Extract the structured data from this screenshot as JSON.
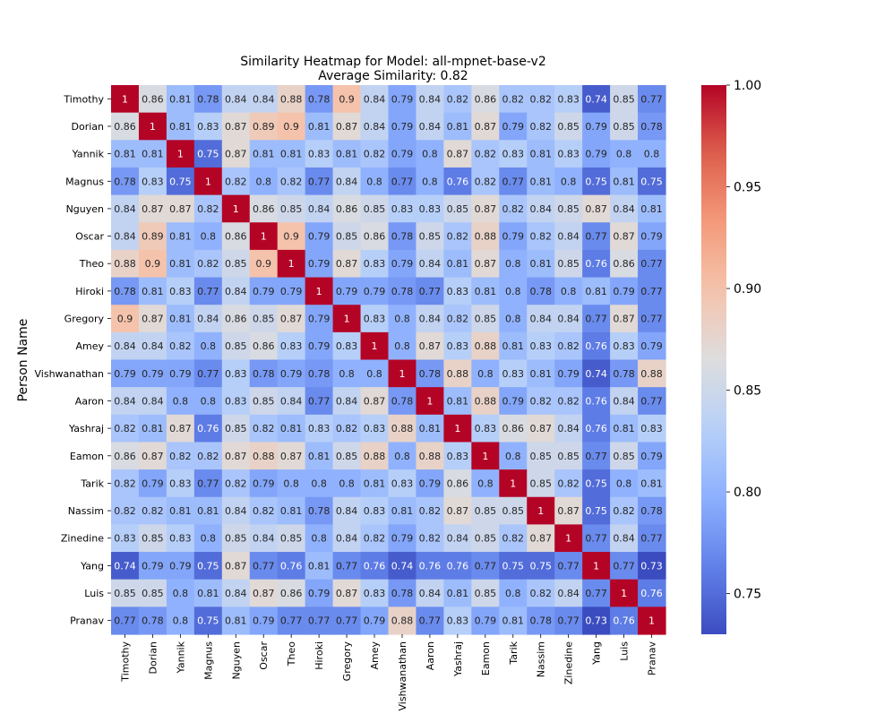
{
  "chart_data": {
    "type": "heatmap",
    "title": "Similarity Heatmap for Model: all-mpnet-base-v2",
    "subtitle": "Average Similarity: 0.82",
    "xlabel": "",
    "ylabel": "Person Name",
    "names": [
      "Timothy",
      "Dorian",
      "Yannik",
      "Magnus",
      "Nguyen",
      "Oscar",
      "Theo",
      "Hiroki",
      "Gregory",
      "Amey",
      "Vishwanathan",
      "Aaron",
      "Yashraj",
      "Eamon",
      "Tarik",
      "Nassim",
      "Zinedine",
      "Yang",
      "Luis",
      "Pranav"
    ],
    "values": [
      [
        1,
        0.86,
        0.81,
        0.78,
        0.84,
        0.84,
        0.88,
        0.78,
        0.9,
        0.84,
        0.79,
        0.84,
        0.82,
        0.86,
        0.82,
        0.82,
        0.83,
        0.74,
        0.85,
        0.77
      ],
      [
        0.86,
        1,
        0.81,
        0.83,
        0.87,
        0.89,
        0.9,
        0.81,
        0.87,
        0.84,
        0.79,
        0.84,
        0.81,
        0.87,
        0.79,
        0.82,
        0.85,
        0.79,
        0.85,
        0.78
      ],
      [
        0.81,
        0.81,
        1,
        0.75,
        0.87,
        0.81,
        0.81,
        0.83,
        0.81,
        0.82,
        0.79,
        0.8,
        0.87,
        0.82,
        0.83,
        0.81,
        0.83,
        0.79,
        0.8,
        0.8
      ],
      [
        0.78,
        0.83,
        0.75,
        1,
        0.82,
        0.8,
        0.82,
        0.77,
        0.84,
        0.8,
        0.77,
        0.8,
        0.76,
        0.82,
        0.77,
        0.81,
        0.8,
        0.75,
        0.81,
        0.75
      ],
      [
        0.84,
        0.87,
        0.87,
        0.82,
        1,
        0.86,
        0.85,
        0.84,
        0.86,
        0.85,
        0.83,
        0.83,
        0.85,
        0.87,
        0.82,
        0.84,
        0.85,
        0.87,
        0.84,
        0.81
      ],
      [
        0.84,
        0.89,
        0.81,
        0.8,
        0.86,
        1,
        0.9,
        0.79,
        0.85,
        0.86,
        0.78,
        0.85,
        0.82,
        0.88,
        0.79,
        0.82,
        0.84,
        0.77,
        0.87,
        0.79
      ],
      [
        0.88,
        0.9,
        0.81,
        0.82,
        0.85,
        0.9,
        1,
        0.79,
        0.87,
        0.83,
        0.79,
        0.84,
        0.81,
        0.87,
        0.8,
        0.81,
        0.85,
        0.76,
        0.86,
        0.77
      ],
      [
        0.78,
        0.81,
        0.83,
        0.77,
        0.84,
        0.79,
        0.79,
        1,
        0.79,
        0.79,
        0.78,
        0.77,
        0.83,
        0.81,
        0.8,
        0.78,
        0.8,
        0.81,
        0.79,
        0.77
      ],
      [
        0.9,
        0.87,
        0.81,
        0.84,
        0.86,
        0.85,
        0.87,
        0.79,
        1,
        0.83,
        0.8,
        0.84,
        0.82,
        0.85,
        0.8,
        0.84,
        0.84,
        0.77,
        0.87,
        0.77
      ],
      [
        0.84,
        0.84,
        0.82,
        0.8,
        0.85,
        0.86,
        0.83,
        0.79,
        0.83,
        1,
        0.8,
        0.87,
        0.83,
        0.88,
        0.81,
        0.83,
        0.82,
        0.76,
        0.83,
        0.79
      ],
      [
        0.79,
        0.79,
        0.79,
        0.77,
        0.83,
        0.78,
        0.79,
        0.78,
        0.8,
        0.8,
        1,
        0.78,
        0.88,
        0.8,
        0.83,
        0.81,
        0.79,
        0.74,
        0.78,
        0.88
      ],
      [
        0.84,
        0.84,
        0.8,
        0.8,
        0.83,
        0.85,
        0.84,
        0.77,
        0.84,
        0.87,
        0.78,
        1,
        0.81,
        0.88,
        0.79,
        0.82,
        0.82,
        0.76,
        0.84,
        0.77
      ],
      [
        0.82,
        0.81,
        0.87,
        0.76,
        0.85,
        0.82,
        0.81,
        0.83,
        0.82,
        0.83,
        0.88,
        0.81,
        1,
        0.83,
        0.86,
        0.87,
        0.84,
        0.76,
        0.81,
        0.83
      ],
      [
        0.86,
        0.87,
        0.82,
        0.82,
        0.87,
        0.88,
        0.87,
        0.81,
        0.85,
        0.88,
        0.8,
        0.88,
        0.83,
        1,
        0.8,
        0.85,
        0.85,
        0.77,
        0.85,
        0.79
      ],
      [
        0.82,
        0.79,
        0.83,
        0.77,
        0.82,
        0.79,
        0.8,
        0.8,
        0.8,
        0.81,
        0.83,
        0.79,
        0.86,
        0.8,
        1,
        0.85,
        0.82,
        0.75,
        0.8,
        0.81
      ],
      [
        0.82,
        0.82,
        0.81,
        0.81,
        0.84,
        0.82,
        0.81,
        0.78,
        0.84,
        0.83,
        0.81,
        0.82,
        0.87,
        0.85,
        0.85,
        1,
        0.87,
        0.75,
        0.82,
        0.78
      ],
      [
        0.83,
        0.85,
        0.83,
        0.8,
        0.85,
        0.84,
        0.85,
        0.8,
        0.84,
        0.82,
        0.79,
        0.82,
        0.84,
        0.85,
        0.82,
        0.87,
        1,
        0.77,
        0.84,
        0.77
      ],
      [
        0.74,
        0.79,
        0.79,
        0.75,
        0.87,
        0.77,
        0.76,
        0.81,
        0.77,
        0.76,
        0.74,
        0.76,
        0.76,
        0.77,
        0.75,
        0.75,
        0.77,
        1,
        0.77,
        0.73
      ],
      [
        0.85,
        0.85,
        0.8,
        0.81,
        0.84,
        0.87,
        0.86,
        0.79,
        0.87,
        0.83,
        0.78,
        0.84,
        0.81,
        0.85,
        0.8,
        0.82,
        0.84,
        0.77,
        1,
        0.76
      ],
      [
        0.77,
        0.78,
        0.8,
        0.75,
        0.81,
        0.79,
        0.77,
        0.77,
        0.77,
        0.79,
        0.88,
        0.77,
        0.83,
        0.79,
        0.81,
        0.78,
        0.77,
        0.73,
        0.76,
        1
      ]
    ],
    "colormap": "coolwarm",
    "vmin": 0.73,
    "vmax": 1.0,
    "colorbar_ticks": [
      "0.75",
      "0.80",
      "0.85",
      "0.90",
      "0.95",
      "1.00"
    ],
    "legend": "colorbar-right",
    "grid": false
  }
}
